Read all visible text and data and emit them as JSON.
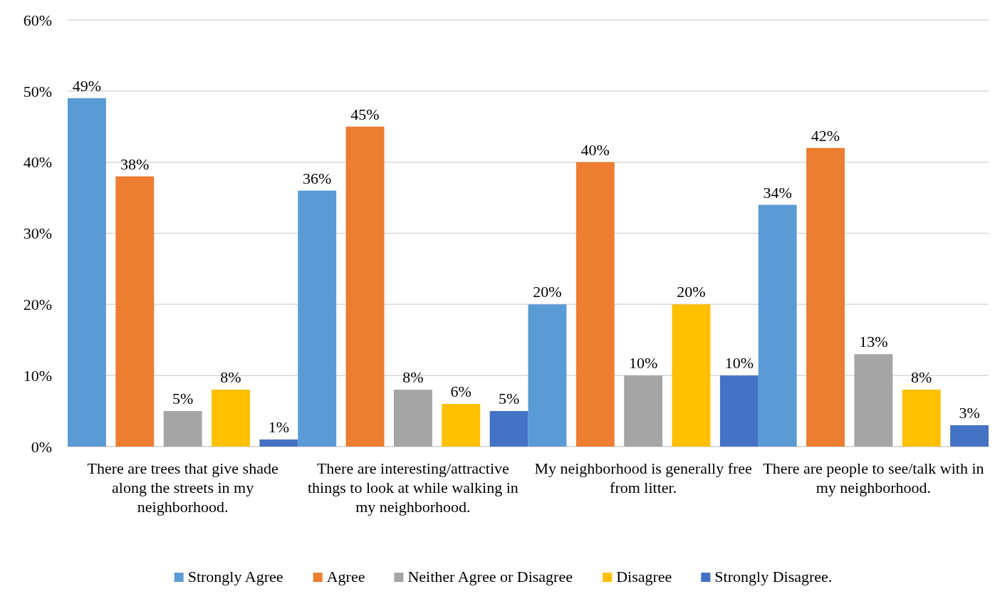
{
  "chart_data": {
    "type": "bar",
    "categories": [
      "There are trees that give shade along the streets in my neighborhood.",
      "There are interesting/attractive things to look at while walking in my neighborhood.",
      "My neighborhood is generally free from litter.",
      "There are people to see/talk with in my neighborhood."
    ],
    "series": [
      {
        "name": "Strongly Agree",
        "color": "#5b9bd5",
        "values": [
          49,
          36,
          20,
          34
        ],
        "value_labels": [
          "49%",
          "36%",
          "20%",
          "34%"
        ]
      },
      {
        "name": "Agree",
        "color": "#ed7d31",
        "values": [
          38,
          45,
          40,
          42
        ],
        "value_labels": [
          "38%",
          "45%",
          "40%",
          "42%"
        ]
      },
      {
        "name": "Neither Agree or Disagree",
        "color": "#a5a5a5",
        "values": [
          5,
          8,
          10,
          13
        ],
        "value_labels": [
          "5%",
          "8%",
          "10%",
          "13%"
        ]
      },
      {
        "name": "Disagree",
        "color": "#ffc000",
        "values": [
          8,
          6,
          20,
          8
        ],
        "value_labels": [
          "8%",
          "6%",
          "20%",
          "8%"
        ]
      },
      {
        "name": "Strongly Disagree.",
        "color": "#4472c4",
        "values": [
          1,
          5,
          10,
          3
        ],
        "value_labels": [
          "1%",
          "5%",
          "10%",
          "3%"
        ]
      }
    ],
    "ylim": [
      0,
      60
    ],
    "yticks": [
      {
        "value": 0,
        "label": "0%"
      },
      {
        "value": 10,
        "label": "10%"
      },
      {
        "value": 20,
        "label": "20%"
      },
      {
        "value": 30,
        "label": "30%"
      },
      {
        "value": 40,
        "label": "40%"
      },
      {
        "value": 50,
        "label": "50%"
      },
      {
        "value": 60,
        "label": "60%"
      }
    ],
    "grid": "y",
    "legend": "bottom"
  }
}
